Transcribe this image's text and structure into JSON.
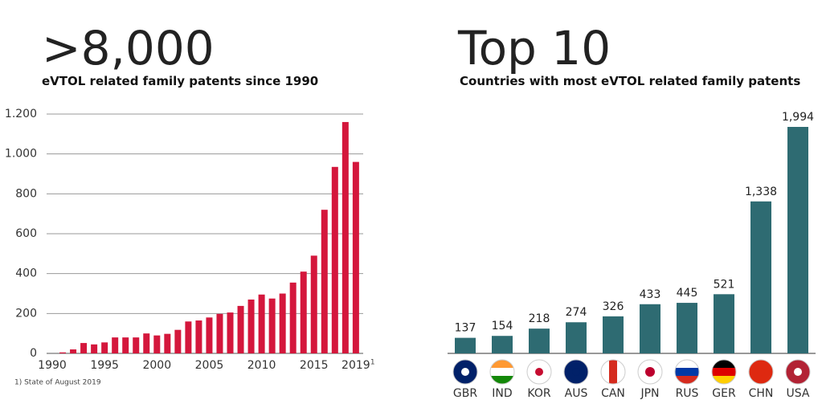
{
  "chart_data": [
    {
      "type": "bar",
      "title": ">8,000",
      "subtitle": "eVTOL related family patents since 1990",
      "x": [
        1990,
        1991,
        1992,
        1993,
        1994,
        1995,
        1996,
        1997,
        1998,
        1999,
        2000,
        2001,
        2002,
        2003,
        2004,
        2005,
        2006,
        2007,
        2008,
        2009,
        2010,
        2011,
        2012,
        2013,
        2014,
        2015,
        2016,
        2017,
        2018,
        2019
      ],
      "values": [
        0,
        5,
        20,
        52,
        45,
        55,
        80,
        80,
        80,
        100,
        90,
        98,
        118,
        160,
        165,
        180,
        198,
        205,
        238,
        270,
        295,
        275,
        300,
        355,
        410,
        490,
        720,
        935,
        1160,
        960
      ],
      "color": "#d4173c",
      "title_color": "#d4173c",
      "xlim": [
        1989.5,
        2019.7
      ],
      "xticks": [
        1990,
        1995,
        2000,
        2005,
        2010,
        2015,
        2019
      ],
      "xtick_marker": "1",
      "ylim": [
        0,
        1200
      ],
      "yticks": [
        0,
        200,
        400,
        600,
        800,
        {
          "value": 1000,
          "label": "1.000"
        },
        {
          "value": 1200,
          "label": "1.200"
        }
      ],
      "grid": true,
      "annotation": "1) State of August 2019"
    },
    {
      "type": "bar",
      "title": "Top 10",
      "subtitle": "Countries with most eVTOL related family patents",
      "categories": [
        "GBR",
        "IND",
        "KOR",
        "AUS",
        "CAN",
        "JPN",
        "RUS",
        "GER",
        "CHN",
        "USA"
      ],
      "values": [
        137,
        154,
        218,
        274,
        326,
        433,
        445,
        521,
        1338,
        1994
      ],
      "value_labels": [
        "137",
        "154",
        "218",
        "274",
        "326",
        "433",
        "445",
        "521",
        "1,338",
        "1,994"
      ],
      "color": "#2e6b72",
      "title_color": "#2e6b72",
      "ylim": [
        0,
        2000
      ]
    }
  ]
}
